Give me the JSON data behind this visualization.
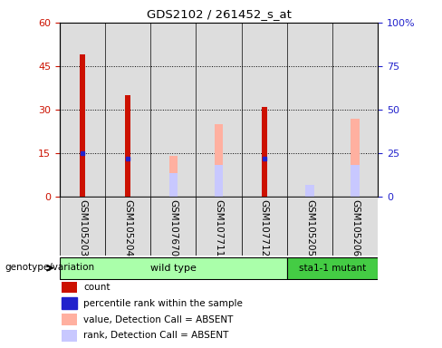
{
  "title": "GDS2102 / 261452_s_at",
  "samples": [
    "GSM105203",
    "GSM105204",
    "GSM107670",
    "GSM107711",
    "GSM107712",
    "GSM105205",
    "GSM105206"
  ],
  "count_values": [
    49,
    35,
    0,
    0,
    31,
    0,
    0
  ],
  "percentile_rank": [
    25,
    22,
    0,
    0,
    22,
    0,
    0
  ],
  "absent_value": [
    0,
    0,
    14,
    25,
    0,
    2,
    27
  ],
  "absent_rank": [
    0,
    0,
    8,
    11,
    0,
    4,
    11
  ],
  "left_ylim": [
    0,
    60
  ],
  "right_ylim": [
    0,
    100
  ],
  "left_yticks": [
    0,
    15,
    30,
    45,
    60
  ],
  "right_yticks": [
    0,
    25,
    50,
    75,
    100
  ],
  "right_yticklabels": [
    "0",
    "25",
    "50",
    "75",
    "100%"
  ],
  "color_count": "#cc1100",
  "color_rank": "#2222cc",
  "color_absent_value": "#ffb0a0",
  "color_absent_rank": "#c8c8ff",
  "bar_width": 0.12,
  "group_colors_wt": "#aaffaa",
  "group_colors_mut": "#44cc44",
  "legend_items": [
    {
      "label": "count",
      "color": "#cc1100"
    },
    {
      "label": "percentile rank within the sample",
      "color": "#2222cc"
    },
    {
      "label": "value, Detection Call = ABSENT",
      "color": "#ffb0a0"
    },
    {
      "label": "rank, Detection Call = ABSENT",
      "color": "#c8c8ff"
    }
  ],
  "genotype_label": "genotype/variation",
  "bg_color": "#dddddd",
  "plot_bg": "white"
}
